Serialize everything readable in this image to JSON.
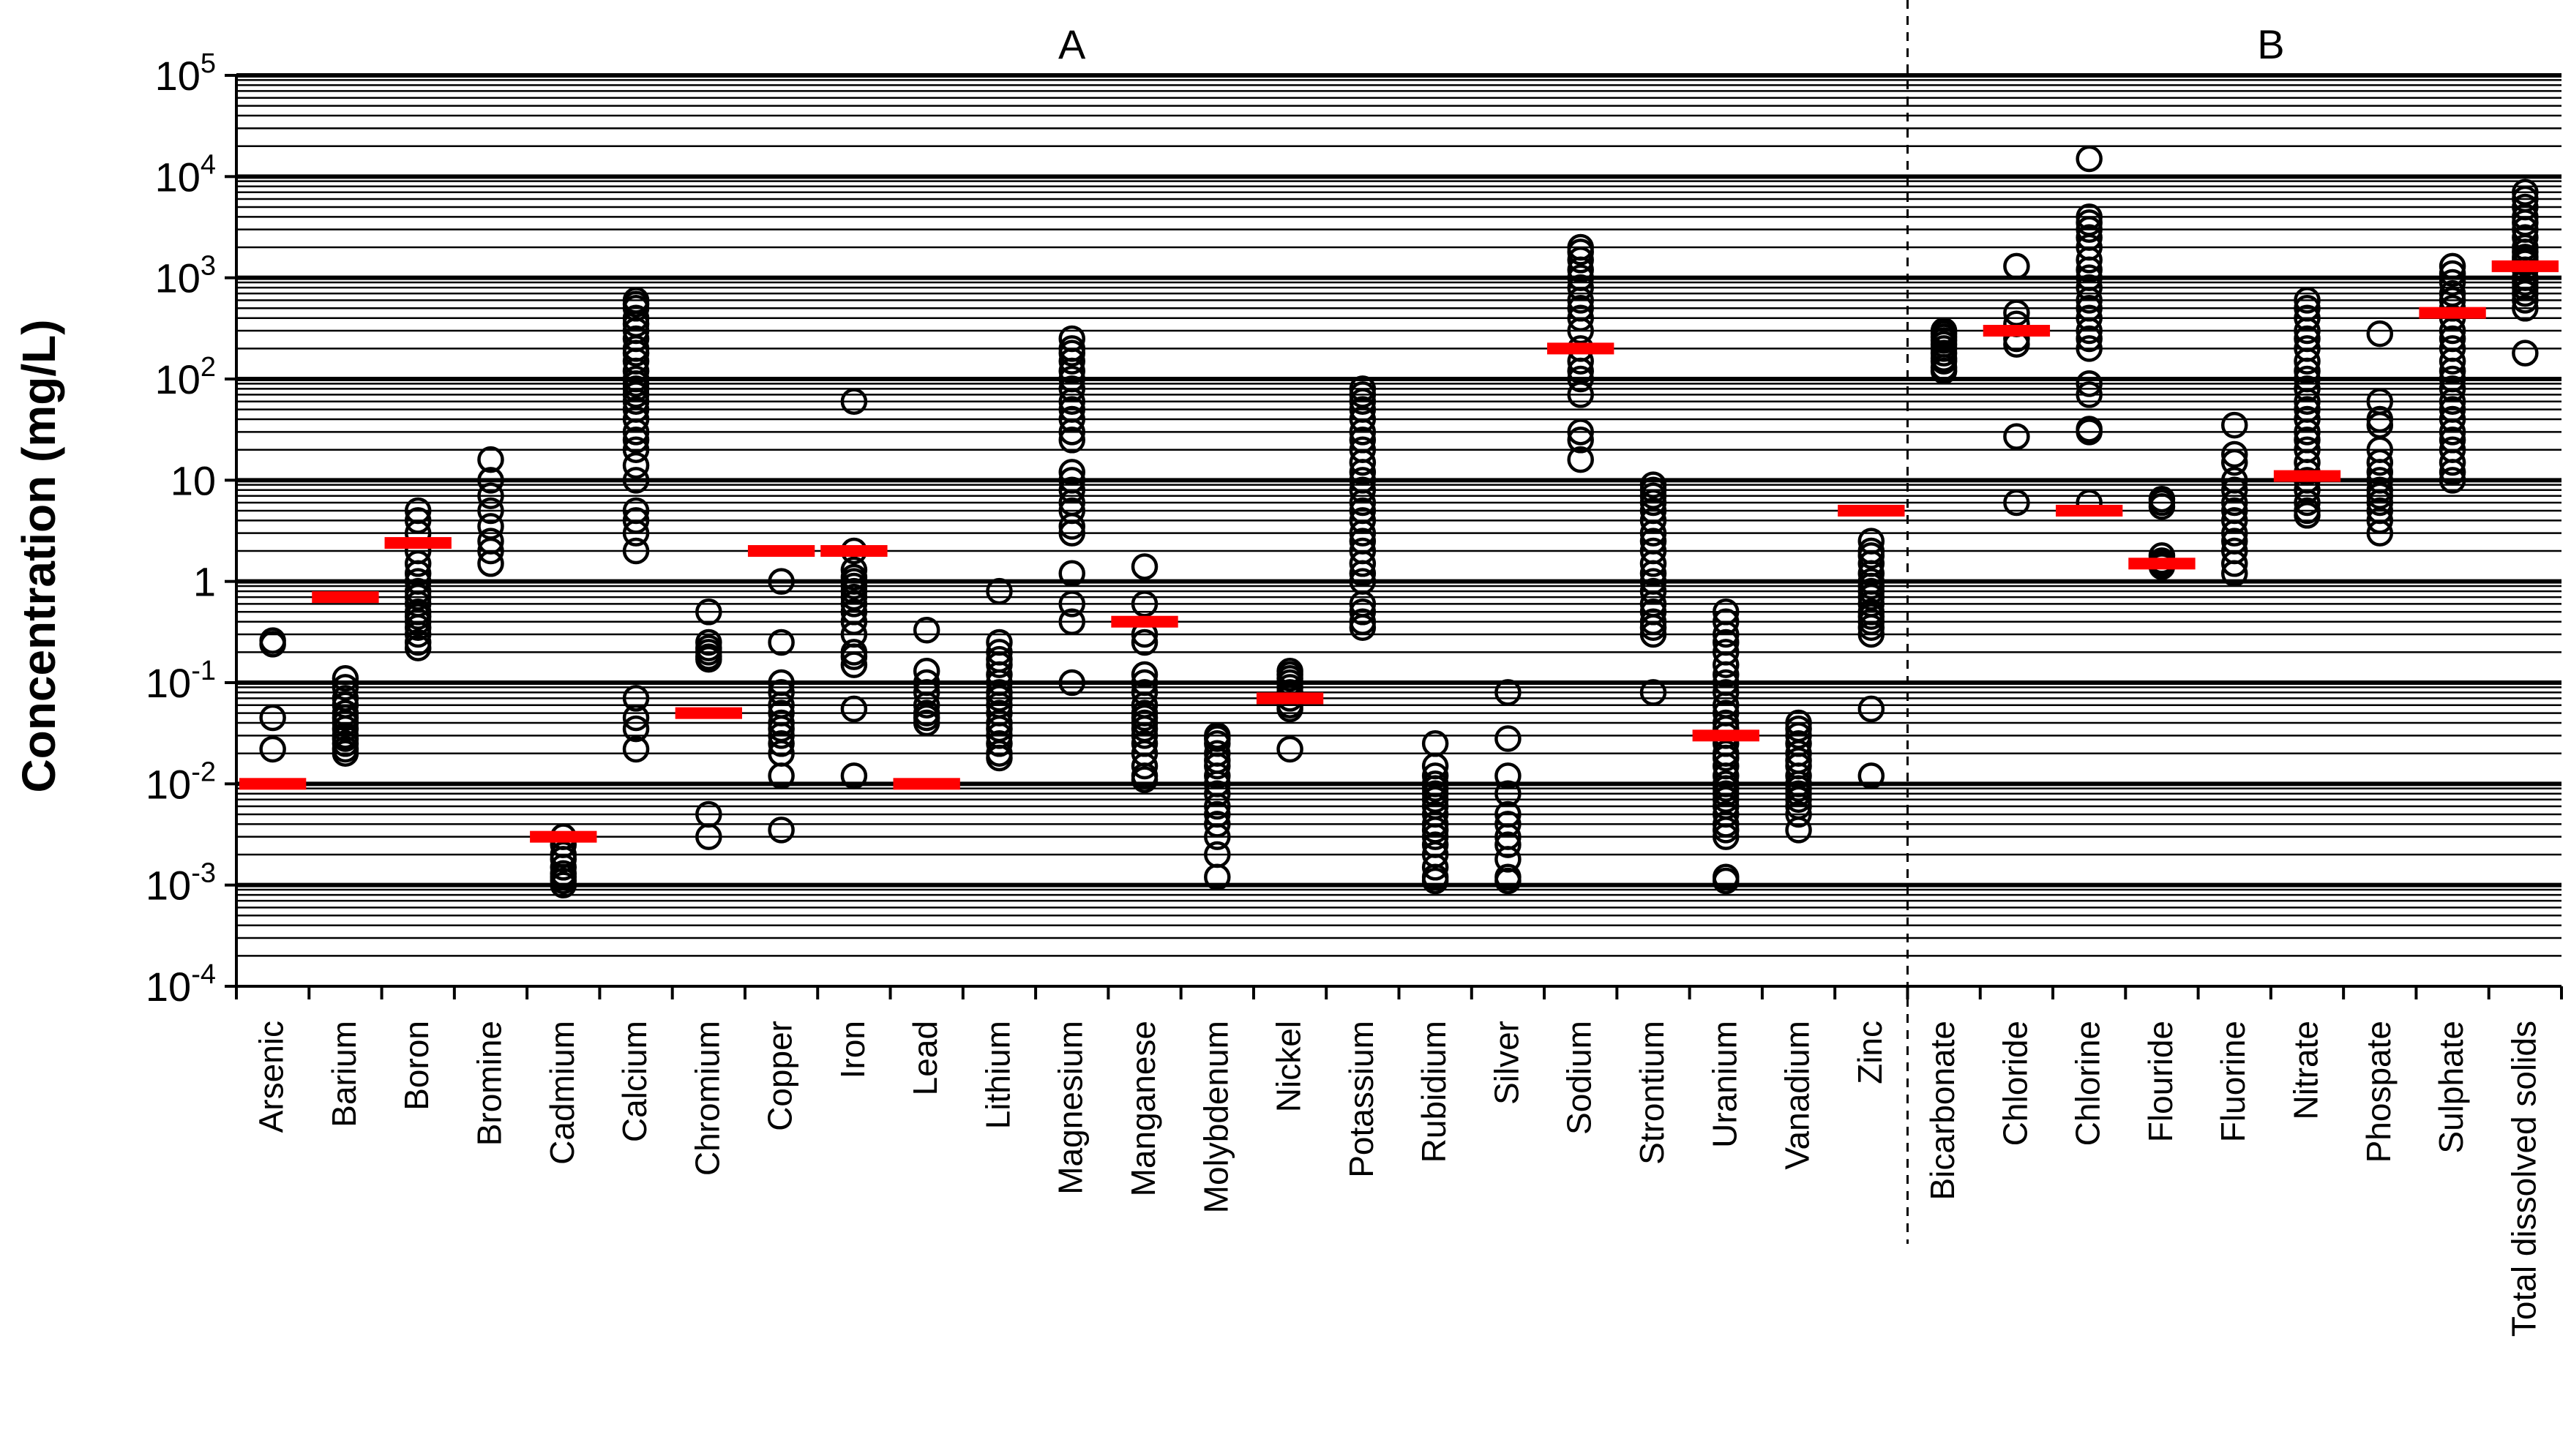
{
  "chart_data": {
    "type": "scatter",
    "title": "",
    "ylabel": "Concentration (mg/L)",
    "xlabel": "",
    "yscale": "log",
    "ylim": [
      0.0001,
      100000
    ],
    "grid": true,
    "colors": {
      "points": "#000000",
      "guideline": "#ff0000",
      "grid": "#000000"
    },
    "y_ticks": [
      {
        "v": 0.0001,
        "base": "10",
        "exp": "-4"
      },
      {
        "v": 0.001,
        "base": "10",
        "exp": "-3"
      },
      {
        "v": 0.01,
        "base": "10",
        "exp": "-2"
      },
      {
        "v": 0.1,
        "base": "10",
        "exp": "-1"
      },
      {
        "v": 1,
        "base": "1",
        "exp": ""
      },
      {
        "v": 10,
        "base": "10",
        "exp": ""
      },
      {
        "v": 100,
        "base": "10",
        "exp": "2"
      },
      {
        "v": 1000,
        "base": "10",
        "exp": "3"
      },
      {
        "v": 10000,
        "base": "10",
        "exp": "4"
      },
      {
        "v": 100000,
        "base": "10",
        "exp": "5"
      }
    ],
    "groups": [
      {
        "label": "A",
        "from": 0,
        "to": 22
      },
      {
        "label": "B",
        "from": 23,
        "to": 32
      }
    ],
    "divider_after_index": 22,
    "categories": [
      "Arsenic",
      "Barium",
      "Boron",
      "Bromine",
      "Cadmium",
      "Calcium",
      "Chromium",
      "Copper",
      "Iron",
      "Lead",
      "Lithium",
      "Magnesium",
      "Manganese",
      "Molybdenum",
      "Nickel",
      "Potassium",
      "Rubidium",
      "Silver",
      "Sodium",
      "Strontium",
      "Uranium",
      "Vanadium",
      "Zinc",
      "Bicarbonate",
      "Chloride",
      "Chlorine",
      "Flouride",
      "Fluorine",
      "Nitrate",
      "Phospate",
      "Sulphate",
      "Total dissolved solids"
    ],
    "guidelines": [
      {
        "category": "Arsenic",
        "value": 0.01
      },
      {
        "category": "Barium",
        "value": 0.7
      },
      {
        "category": "Boron",
        "value": 2.4
      },
      {
        "category": "Cadmium",
        "value": 0.003
      },
      {
        "category": "Chromium",
        "value": 0.05
      },
      {
        "category": "Copper",
        "value": 2
      },
      {
        "category": "Iron",
        "value": 2
      },
      {
        "category": "Lead",
        "value": 0.01
      },
      {
        "category": "Manganese",
        "value": 0.4
      },
      {
        "category": "Nickel",
        "value": 0.07
      },
      {
        "category": "Sodium",
        "value": 200
      },
      {
        "category": "Uranium",
        "value": 0.03
      },
      {
        "category": "Zinc",
        "value": 5
      },
      {
        "category": "Chloride",
        "value": 300
      },
      {
        "category": "Chlorine",
        "value": 5
      },
      {
        "category": "Flouride",
        "value": 1.5
      },
      {
        "category": "Nitrate",
        "value": 11
      },
      {
        "category": "Sulphate",
        "value": 450
      },
      {
        "category": "Total dissolved solids",
        "value": 1300
      }
    ],
    "series": [
      {
        "name": "Arsenic",
        "values": [
          0.26,
          0.24,
          0.045,
          0.022
        ]
      },
      {
        "name": "Barium",
        "values": [
          0.11,
          0.09,
          0.07,
          0.06,
          0.05,
          0.045,
          0.04,
          0.035,
          0.03,
          0.028,
          0.025,
          0.022,
          0.02
        ]
      },
      {
        "name": "Boron",
        "values": [
          5,
          4,
          3,
          2,
          1.5,
          1.2,
          1,
          0.8,
          0.7,
          0.6,
          0.5,
          0.45,
          0.4,
          0.35,
          0.3,
          0.25,
          0.22
        ]
      },
      {
        "name": "Bromine",
        "values": [
          16,
          10,
          7,
          5,
          3.5,
          2.5,
          2,
          1.5
        ]
      },
      {
        "name": "Cadmium",
        "values": [
          0.003,
          0.0025,
          0.002,
          0.0018,
          0.0015,
          0.0013,
          0.0012,
          0.0011,
          0.001
        ]
      },
      {
        "name": "Calcium",
        "values": [
          600,
          550,
          500,
          400,
          350,
          300,
          250,
          200,
          180,
          150,
          120,
          100,
          90,
          80,
          70,
          60,
          50,
          40,
          30,
          25,
          20,
          14,
          10,
          5,
          4,
          3,
          2,
          0.07,
          0.045,
          0.035,
          0.022
        ]
      },
      {
        "name": "Chromium",
        "values": [
          0.5,
          0.25,
          0.22,
          0.2,
          0.18,
          0.17,
          0.005,
          0.003
        ]
      },
      {
        "name": "Copper",
        "values": [
          1,
          0.25,
          0.1,
          0.08,
          0.06,
          0.05,
          0.04,
          0.035,
          0.03,
          0.025,
          0.02,
          0.012,
          0.0035
        ]
      },
      {
        "name": "Iron",
        "values": [
          60,
          2,
          1.3,
          1.1,
          1,
          0.9,
          0.8,
          0.7,
          0.6,
          0.5,
          0.4,
          0.3,
          0.2,
          0.18,
          0.15,
          0.055,
          0.012
        ]
      },
      {
        "name": "Lead",
        "values": [
          0.33,
          0.13,
          0.1,
          0.08,
          0.06,
          0.05,
          0.045,
          0.04
        ]
      },
      {
        "name": "Lithium",
        "values": [
          0.8,
          0.25,
          0.2,
          0.17,
          0.15,
          0.12,
          0.1,
          0.08,
          0.07,
          0.06,
          0.05,
          0.04,
          0.035,
          0.03,
          0.025,
          0.02,
          0.018
        ]
      },
      {
        "name": "Magnesium",
        "values": [
          250,
          200,
          180,
          150,
          120,
          100,
          80,
          60,
          50,
          40,
          30,
          25,
          12,
          10,
          8,
          6,
          5,
          3.5,
          3,
          1.2,
          0.6,
          0.4,
          0.1
        ]
      },
      {
        "name": "Manganese",
        "values": [
          1.4,
          0.6,
          0.3,
          0.25,
          0.12,
          0.1,
          0.08,
          0.06,
          0.05,
          0.045,
          0.04,
          0.035,
          0.03,
          0.025,
          0.02,
          0.015,
          0.012,
          0.011
        ]
      },
      {
        "name": "Molybdenum",
        "values": [
          0.03,
          0.028,
          0.025,
          0.02,
          0.017,
          0.015,
          0.012,
          0.01,
          0.008,
          0.006,
          0.005,
          0.004,
          0.003,
          0.002,
          0.0012
        ]
      },
      {
        "name": "Nickel",
        "values": [
          0.13,
          0.12,
          0.11,
          0.1,
          0.09,
          0.08,
          0.07,
          0.06,
          0.055,
          0.022
        ]
      },
      {
        "name": "Potassium",
        "values": [
          80,
          70,
          60,
          50,
          40,
          30,
          25,
          20,
          15,
          12,
          10,
          8,
          6,
          5,
          4,
          3,
          2.5,
          2,
          1.5,
          1.2,
          1,
          0.6,
          0.5,
          0.4,
          0.35
        ]
      },
      {
        "name": "Rubidium",
        "values": [
          0.025,
          0.015,
          0.012,
          0.01,
          0.009,
          0.008,
          0.007,
          0.006,
          0.005,
          0.004,
          0.0035,
          0.003,
          0.0025,
          0.002,
          0.0015,
          0.0012,
          0.0011
        ]
      },
      {
        "name": "Silver",
        "values": [
          0.08,
          0.028,
          0.012,
          0.008,
          0.005,
          0.004,
          0.003,
          0.0025,
          0.0018,
          0.0012,
          0.0011
        ]
      },
      {
        "name": "Sodium",
        "values": [
          2000,
          1800,
          1500,
          1200,
          1000,
          800,
          600,
          500,
          400,
          300,
          200,
          150,
          120,
          100,
          70,
          30,
          25,
          16
        ]
      },
      {
        "name": "Strontium",
        "values": [
          9,
          8,
          7,
          6,
          5,
          4,
          3,
          2.5,
          2,
          1.5,
          1.2,
          1,
          0.8,
          0.6,
          0.5,
          0.4,
          0.35,
          0.3,
          0.08
        ]
      },
      {
        "name": "Uranium",
        "values": [
          0.5,
          0.4,
          0.3,
          0.25,
          0.2,
          0.15,
          0.12,
          0.1,
          0.08,
          0.06,
          0.05,
          0.04,
          0.035,
          0.03,
          0.025,
          0.02,
          0.018,
          0.015,
          0.012,
          0.01,
          0.009,
          0.008,
          0.007,
          0.006,
          0.005,
          0.004,
          0.0035,
          0.003,
          0.0012,
          0.0011
        ]
      },
      {
        "name": "Vanadium",
        "values": [
          0.04,
          0.035,
          0.03,
          0.025,
          0.02,
          0.017,
          0.015,
          0.012,
          0.01,
          0.009,
          0.008,
          0.007,
          0.006,
          0.005,
          0.0035
        ]
      },
      {
        "name": "Zinc",
        "values": [
          2.5,
          2,
          1.8,
          1.5,
          1.2,
          1,
          0.9,
          0.8,
          0.7,
          0.6,
          0.5,
          0.45,
          0.4,
          0.35,
          0.3,
          0.055,
          0.012
        ]
      },
      {
        "name": "Bicarbonate",
        "values": [
          300,
          280,
          260,
          240,
          220,
          200,
          180,
          160,
          150,
          130,
          120
        ]
      },
      {
        "name": "Chloride",
        "values": [
          1300,
          450,
          350,
          250,
          220,
          27,
          6
        ]
      },
      {
        "name": "Chlorine",
        "values": [
          15000,
          4000,
          3500,
          3000,
          2500,
          2000,
          1500,
          1200,
          1000,
          800,
          600,
          500,
          400,
          300,
          250,
          200,
          90,
          70,
          32,
          30,
          6
        ]
      },
      {
        "name": "Flouride",
        "values": [
          6.5,
          6,
          5.5,
          1.8,
          1.6,
          1.5,
          1.4
        ]
      },
      {
        "name": "Fluorine",
        "values": [
          35,
          18,
          15,
          10,
          8,
          6,
          5,
          4,
          3,
          2.5,
          2,
          1.5,
          1.2
        ]
      },
      {
        "name": "Nitrate",
        "values": [
          600,
          500,
          400,
          300,
          250,
          200,
          150,
          120,
          100,
          80,
          60,
          50,
          40,
          30,
          25,
          20,
          15,
          12,
          10,
          8,
          6,
          5,
          4.5
        ]
      },
      {
        "name": "Phospate",
        "values": [
          280,
          60,
          40,
          35,
          20,
          15,
          12,
          10,
          8,
          7,
          6,
          5,
          4,
          3
        ]
      },
      {
        "name": "Sulphate",
        "values": [
          1300,
          1100,
          900,
          700,
          600,
          500,
          400,
          300,
          250,
          200,
          150,
          120,
          100,
          80,
          60,
          50,
          40,
          30,
          25,
          20,
          15,
          12,
          10
        ]
      },
      {
        "name": "Total dissolved solids",
        "values": [
          7000,
          6000,
          5000,
          4000,
          3500,
          3000,
          2500,
          2000,
          1800,
          1600,
          1500,
          1400,
          1200,
          1000,
          900,
          800,
          700,
          600,
          500,
          180
        ]
      }
    ]
  }
}
